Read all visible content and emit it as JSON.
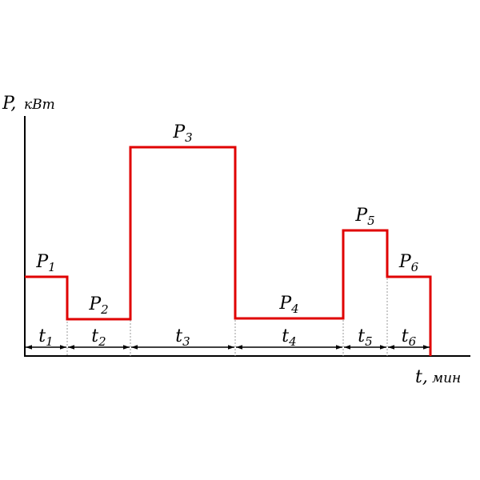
{
  "axis": {
    "y_label": "P,",
    "y_unit": "кВт",
    "x_label": "t,",
    "x_unit": "мин"
  },
  "chart_data": {
    "type": "line",
    "step": true,
    "line_color": "#e00000",
    "segments": [
      {
        "power_name": "P",
        "power_index": "1",
        "time_name": "t",
        "time_index": "1"
      },
      {
        "power_name": "P",
        "power_index": "2",
        "time_name": "t",
        "time_index": "2"
      },
      {
        "power_name": "P",
        "power_index": "3",
        "time_name": "t",
        "time_index": "3"
      },
      {
        "power_name": "P",
        "power_index": "4",
        "time_name": "t",
        "time_index": "4"
      },
      {
        "power_name": "P",
        "power_index": "5",
        "time_name": "t",
        "time_index": "5"
      },
      {
        "power_name": "P",
        "power_index": "6",
        "time_name": "t",
        "time_index": "6"
      }
    ]
  }
}
